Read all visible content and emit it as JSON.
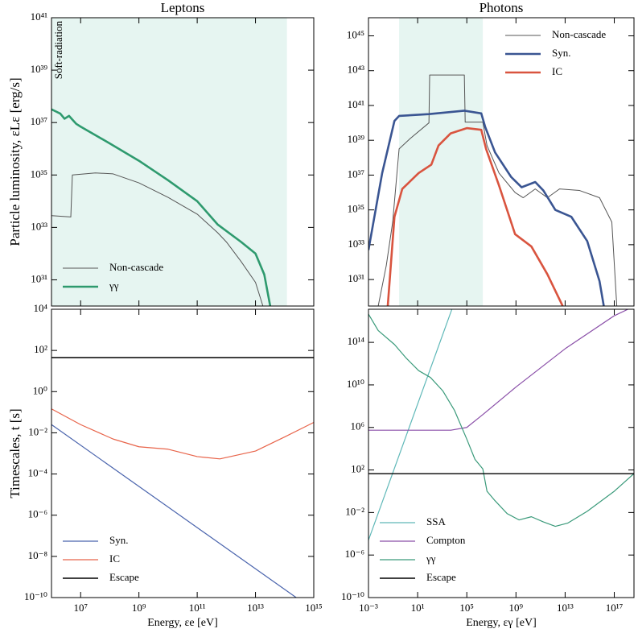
{
  "chart_data": [
    {
      "type": "line",
      "title": "Leptons",
      "ylabel": "Particle luminosity, εLε [erg/s]",
      "annotation": "Soft-radiation",
      "xlog": true,
      "ylog": true,
      "xlim": [
        1000000.0,
        1000000000000000.0
      ],
      "ylim": [
        1e+30,
        1e+41
      ],
      "shaded_range": [
        1000000.0,
        120000000000000.0
      ],
      "shade_color": "#e6f5f1",
      "legend": "lower left",
      "yticks": [
        {
          "value": 1e+31,
          "label": "10³¹"
        },
        {
          "value": 1e+33,
          "label": "10³³"
        },
        {
          "value": 1e+35,
          "label": "10³⁵"
        },
        {
          "value": 1e+37,
          "label": "10³⁷"
        },
        {
          "value": 1e+39,
          "label": "10³⁹"
        },
        {
          "value": 1e+41,
          "label": "10⁴¹"
        }
      ],
      "series": [
        {
          "name": "Non-cascade",
          "color": "#555555",
          "linewidth": 1,
          "x": [
            1000000.0,
            4600000.0,
            5200000.0,
            32000000.0,
            130000000.0,
            1000000000.0,
            10000000000.0,
            100000000000.0,
            500000000000.0,
            1000000000000.0,
            3200000000000.0,
            10000000000000.0,
            18000000000000.0
          ],
          "values": [
            2.8e+33,
            2.5e+33,
            1e+35,
            1.2e+35,
            1.1e+35,
            5e+34,
            1.4e+34,
            3.2e+33,
            6.3e+32,
            2.8e+32,
            5e+31,
            8e+30,
            1e+30
          ]
        },
        {
          "name": "γγ",
          "color": "#2e9a6e",
          "linewidth": 2.6,
          "x": [
            1000000.0,
            2000000.0,
            2800000.0,
            4000000.0,
            5200000.0,
            7000000.0,
            10000000.0,
            100000000.0,
            1000000000.0,
            10000000000.0,
            100000000000.0,
            500000000000.0,
            3200000000000.0,
            10000000000000.0,
            20000000000000.0,
            32000000000000.0
          ],
          "values": [
            3.2e+37,
            2.2e+37,
            1.4e+37,
            1.8e+37,
            1.3e+37,
            9e+36,
            7e+36,
            1.6e+36,
            3.5e+35,
            6.3e+34,
            1e+34,
            1.3e+33,
            2.8e+32,
            1e+32,
            1.6e+31,
            1e+30
          ]
        }
      ]
    },
    {
      "type": "line",
      "title": "Photons",
      "xlog": true,
      "ylog": true,
      "xlim": [
        0.001,
        4e+18
      ],
      "ylim": [
        3e+29,
        1.1e+46
      ],
      "shaded_range": [
        0.31,
        2000000.0
      ],
      "shade_color": "#e6f5f1",
      "legend": "upper right",
      "yticks": [
        {
          "value": 1e+31,
          "label": "10³¹"
        },
        {
          "value": 1e+33,
          "label": "10³³"
        },
        {
          "value": 1e+35,
          "label": "10³⁵"
        },
        {
          "value": 1e+37,
          "label": "10³⁷"
        },
        {
          "value": 1e+39,
          "label": "10³⁹"
        },
        {
          "value": 1e+41,
          "label": "10⁴¹"
        },
        {
          "value": 1e+43,
          "label": "10⁴³"
        },
        {
          "value": 1e+45,
          "label": "10⁴⁵"
        }
      ],
      "series": [
        {
          "name": "Non-cascade",
          "color": "#555555",
          "linewidth": 1,
          "x": [
            0.0062,
            0.028,
            0.093,
            0.31,
            2.6,
            83,
            95,
            63000.0,
            74000.0,
            2000000.0,
            4400000.0,
            42000000.0,
            850000000.0,
            3900000000.0,
            37000000000.0,
            360000000000.0,
            3500000000000.0,
            150000000000000.0,
            6300000000000000.0,
            6.3e+16,
            1.6e+17
          ],
          "values": [
            3e+29,
            6.3e+31,
            2e+34,
            3.2e+38,
            1.3e+39,
            1e+40,
            5.6e+42,
            5.6e+42,
            1.1e+40,
            1.1e+40,
            5e+38,
            1.3e+37,
            1e+36,
            5e+35,
            1.6e+36,
            5e+35,
            1.6e+36,
            1.3e+36,
            5e+35,
            2e+34,
            3e+29
          ]
        },
        {
          "name": "Syn.",
          "color": "#3a5592",
          "linewidth": 2.6,
          "x": [
            0.001,
            0.013,
            0.13,
            0.31,
            83,
            63000.0,
            1500000.0,
            3200000.0,
            20000000.0,
            400000000.0,
            2900000000.0,
            37000000000.0,
            170000000000.0,
            1600000000000.0,
            32000000000000.0,
            630000000000000.0,
            6300000000000000.0,
            1.4e+16
          ],
          "values": [
            5e+32,
            1.3e+37,
            1.3e+40,
            2.5e+40,
            3.2e+40,
            5e+40,
            3.5e+40,
            5.6e+39,
            2e+38,
            7.9e+36,
            2e+36,
            4e+36,
            1.3e+36,
            1e+35,
            4e+34,
            1.6e+33,
            8e+30,
            3e+29
          ]
        },
        {
          "name": "IC",
          "color": "#d9543f",
          "linewidth": 2.6,
          "x": [
            0.037,
            0.13,
            0.56,
            12,
            130,
            500,
            4900.0,
            100000.0,
            1500000.0,
            3700000.0,
            42000000.0,
            850000000.0,
            18000000000.0,
            360000000000.0,
            6300000000000.0
          ],
          "values": [
            3e+29,
            4e+34,
            1.6e+36,
            1.3e+37,
            4e+37,
            5e+38,
            2.5e+39,
            5e+39,
            4e+39,
            3.2e+38,
            2.5e+36,
            4e+33,
            7.9e+32,
            2e+31,
            3e+29
          ]
        }
      ]
    },
    {
      "type": "line",
      "ylabel": "Timescales, t [s]",
      "xlabel": "Energy, εe [eV]",
      "xlog": true,
      "ylog": true,
      "xlim": [
        1000000.0,
        1000000000000000.0
      ],
      "ylim": [
        1e-10,
        10000.0
      ],
      "legend": "lower left",
      "xticks": [
        {
          "value": 10000000.0,
          "label": "10⁷"
        },
        {
          "value": 1000000000.0,
          "label": "10⁹"
        },
        {
          "value": 100000000000.0,
          "label": "10¹¹"
        },
        {
          "value": 10000000000000.0,
          "label": "10¹³"
        },
        {
          "value": 1000000000000000.0,
          "label": "10¹⁵"
        }
      ],
      "yticks": [
        {
          "value": 1e-10,
          "label": "10⁻¹⁰"
        },
        {
          "value": 1e-08,
          "label": "10⁻⁸"
        },
        {
          "value": 1e-06,
          "label": "10⁻⁶"
        },
        {
          "value": 0.0001,
          "label": "10⁻⁴"
        },
        {
          "value": 0.01,
          "label": "10⁻²"
        },
        {
          "value": 1,
          "label": "10⁰"
        },
        {
          "value": 100,
          "label": "10²"
        },
        {
          "value": 10000.0,
          "label": "10⁴"
        }
      ],
      "series": [
        {
          "name": "Syn.",
          "color": "#4a64ad",
          "linewidth": 1.2,
          "x": [
            1000000.0,
            1000000000000000.0
          ],
          "values": [
            0.025,
            2.5e-11
          ]
        },
        {
          "name": "IC",
          "color": "#e8644a",
          "linewidth": 1.2,
          "x": [
            1000000.0,
            10000000.0,
            130000000.0,
            1000000000.0,
            10000000000.0,
            100000000000.0,
            600000000000.0,
            10000000000000.0,
            100000000000000.0,
            1000000000000000.0
          ],
          "values": [
            0.145,
            0.025,
            0.005,
            0.0021,
            0.0016,
            0.0007,
            0.00054,
            0.0013,
            0.0063,
            0.032
          ]
        },
        {
          "name": "Escape",
          "color": "#000000",
          "linewidth": 1.4,
          "x": [
            1000000.0,
            1000000000000000.0
          ],
          "values": [
            45,
            45
          ]
        }
      ]
    },
    {
      "type": "line",
      "xlabel": "Energy, εγ [eV]",
      "xlog": true,
      "ylog": true,
      "xlim": [
        0.001,
        4e+18
      ],
      "ylim": [
        1e-10,
        1.3e+17
      ],
      "legend": "lower left",
      "xticks": [
        {
          "value": 0.001,
          "label": "10⁻³"
        },
        {
          "value": 10,
          "label": "10¹"
        },
        {
          "value": 100000.0,
          "label": "10⁵"
        },
        {
          "value": 1000000000.0,
          "label": "10⁹"
        },
        {
          "value": 10000000000000.0,
          "label": "10¹³"
        },
        {
          "value": 1e+17,
          "label": "10¹⁷"
        }
      ],
      "yticks": [
        {
          "value": 1e-10,
          "label": "10⁻¹⁰"
        },
        {
          "value": 1e-06,
          "label": "10⁻⁶"
        },
        {
          "value": 0.01,
          "label": "10⁻²"
        },
        {
          "value": 100,
          "label": "10²"
        },
        {
          "value": 1000000.0,
          "label": "10⁶"
        },
        {
          "value": 10000000000.0,
          "label": "10¹⁰"
        },
        {
          "value": 100000000000000.0,
          "label": "10¹⁴"
        }
      ],
      "series": [
        {
          "name": "SSA",
          "color": "#5fb8b8",
          "linewidth": 1.2,
          "x": [
            0.001,
            10000.0
          ],
          "values": [
            2.5e-05,
            6.3e+17
          ]
        },
        {
          "name": "Compton",
          "color": "#8a4fa8",
          "linewidth": 1.2,
          "x": [
            0.001,
            5000.0,
            100000.0,
            2000000.0,
            1000000000.0,
            10000000000000.0,
            1e+17,
            1.3e+18
          ],
          "values": [
            550000.0,
            550000.0,
            1000000.0,
            16000000.0,
            6300000000.0,
            25000000000000.0,
            3.2e+16,
            1.3e+17
          ]
        },
        {
          "name": "γγ",
          "color": "#3a9a7a",
          "linewidth": 1.2,
          "x": [
            0.001,
            0.0062,
            0.13,
            1.2,
            12,
            110,
            1100.0,
            10000.0,
            100000.0,
            460000.0,
            2000000.0,
            4400000.0,
            20000000.0,
            190000000.0,
            1800000000.0,
            18000000000.0,
            170000000000.0,
            1600000000000.0,
            16000000000000.0,
            630000000000000.0,
            1e+17,
            4.4e+18
          ],
          "values": [
            4.5e+16,
            1300000000000000.0,
            63000000000000.0,
            3200000000000.0,
            220000000000.0,
            50000000000.0,
            2800000000.0,
            40000000.0,
            79000.0,
            1000.0,
            126,
            1,
            0.126,
            0.0079,
            0.002,
            0.004,
            0.0013,
            0.0005,
            0.001,
            0.013,
            1,
            50
          ]
        },
        {
          "name": "Escape",
          "color": "#000000",
          "linewidth": 1.4,
          "x": [
            0.001,
            4e+18
          ],
          "values": [
            45,
            45
          ]
        }
      ]
    }
  ]
}
